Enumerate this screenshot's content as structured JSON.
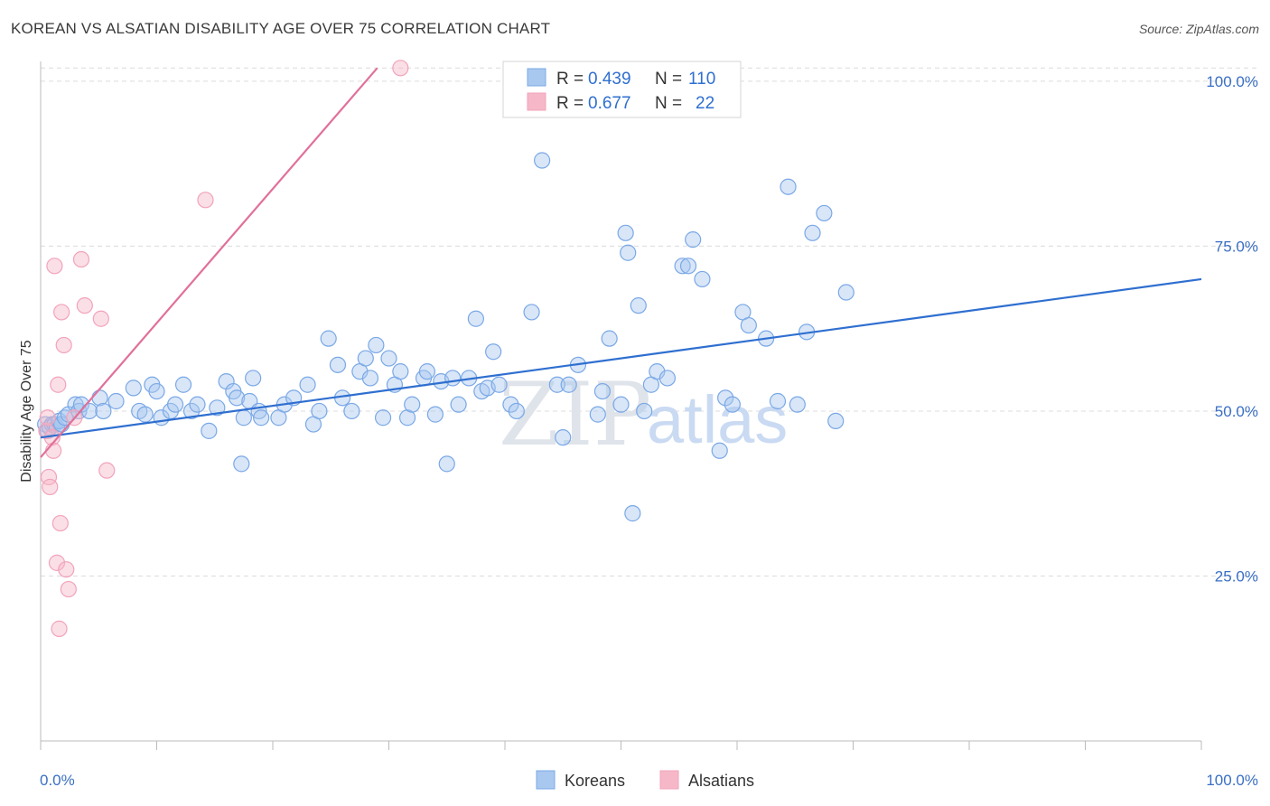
{
  "title": "KOREAN VS ALSATIAN DISABILITY AGE OVER 75 CORRELATION CHART",
  "source": "Source: ZipAtlas.com",
  "watermark": {
    "zip": "ZIP",
    "atlas": "atlas"
  },
  "legend": {
    "r_label": "R =",
    "n_label": "N =",
    "rows": [
      {
        "name": "Koreans",
        "r": "0.439",
        "n": "110",
        "color": "#a9c8f0"
      },
      {
        "name": "Alsatians",
        "r": "0.677",
        "n": "22",
        "color": "#f6b8c8"
      }
    ]
  },
  "chart_data": {
    "type": "scatter",
    "title": "KOREAN VS ALSATIAN DISABILITY AGE OVER 75 CORRELATION CHART",
    "ylabel": "Disability Age Over 75",
    "xlabel": "",
    "xlim": [
      0,
      100
    ],
    "ylim": [
      0,
      103
    ],
    "x_tick_labels": [
      "0.0%",
      "100.0%"
    ],
    "y_tick_labels": [
      "25.0%",
      "50.0%",
      "75.0%",
      "100.0%"
    ],
    "y_ticks": [
      25,
      50,
      75,
      100
    ],
    "grid": true,
    "legend_position": "top-center",
    "series": [
      {
        "name": "Koreans",
        "color": "#7aa8e6",
        "trend": {
          "x": [
            0,
            100
          ],
          "y": [
            46.0,
            70.0
          ],
          "color": "#2f6fd0"
        },
        "points": [
          [
            0.4,
            48
          ],
          [
            0.6,
            47
          ],
          [
            0.8,
            47.5
          ],
          [
            1.0,
            48
          ],
          [
            1.2,
            48
          ],
          [
            1.4,
            47.5
          ],
          [
            1.6,
            48.5
          ],
          [
            1.8,
            48
          ],
          [
            2.1,
            49
          ],
          [
            2.4,
            49.5
          ],
          [
            3.0,
            51
          ],
          [
            3.3,
            50
          ],
          [
            3.5,
            51
          ],
          [
            4.2,
            50
          ],
          [
            5.1,
            52
          ],
          [
            5.4,
            50
          ],
          [
            6.5,
            51.5
          ],
          [
            8.0,
            53.5
          ],
          [
            8.5,
            50
          ],
          [
            9.0,
            49.5
          ],
          [
            9.6,
            54
          ],
          [
            10.0,
            53
          ],
          [
            10.4,
            49
          ],
          [
            11.2,
            50
          ],
          [
            11.6,
            51
          ],
          [
            12.3,
            54
          ],
          [
            13.0,
            50
          ],
          [
            13.5,
            51
          ],
          [
            14.5,
            47
          ],
          [
            15.2,
            50.5
          ],
          [
            16.0,
            54.5
          ],
          [
            16.6,
            53
          ],
          [
            16.9,
            52
          ],
          [
            17.5,
            49
          ],
          [
            18.0,
            51.5
          ],
          [
            18.3,
            55
          ],
          [
            17.3,
            42
          ],
          [
            18.8,
            50
          ],
          [
            19.0,
            49
          ],
          [
            20.5,
            49
          ],
          [
            21.0,
            51
          ],
          [
            21.8,
            52
          ],
          [
            23.0,
            54
          ],
          [
            23.5,
            48
          ],
          [
            24.0,
            50
          ],
          [
            24.8,
            61
          ],
          [
            25.6,
            57
          ],
          [
            26.0,
            52
          ],
          [
            26.8,
            50
          ],
          [
            27.5,
            56
          ],
          [
            28.0,
            58
          ],
          [
            28.4,
            55
          ],
          [
            28.9,
            60
          ],
          [
            29.5,
            49
          ],
          [
            30.0,
            58
          ],
          [
            30.5,
            54
          ],
          [
            31.0,
            56
          ],
          [
            31.6,
            49
          ],
          [
            32.0,
            51
          ],
          [
            33.0,
            55
          ],
          [
            33.3,
            56
          ],
          [
            34.0,
            49.5
          ],
          [
            34.5,
            54.5
          ],
          [
            35.0,
            42
          ],
          [
            35.5,
            55
          ],
          [
            36.0,
            51
          ],
          [
            36.9,
            55
          ],
          [
            37.5,
            64
          ],
          [
            38.0,
            53
          ],
          [
            38.5,
            53.5
          ],
          [
            39.0,
            59
          ],
          [
            39.5,
            54
          ],
          [
            40.5,
            51
          ],
          [
            41.0,
            50
          ],
          [
            42.3,
            65
          ],
          [
            43.2,
            88
          ],
          [
            44.5,
            54
          ],
          [
            45.0,
            46
          ],
          [
            45.5,
            54
          ],
          [
            46.3,
            57
          ],
          [
            48.0,
            49.5
          ],
          [
            48.4,
            53
          ],
          [
            49.0,
            61
          ],
          [
            50.0,
            51
          ],
          [
            50.4,
            77
          ],
          [
            50.6,
            74
          ],
          [
            51.0,
            34.5
          ],
          [
            51.5,
            66
          ],
          [
            52.0,
            50
          ],
          [
            52.6,
            54
          ],
          [
            53.1,
            56
          ],
          [
            54.0,
            55
          ],
          [
            55.3,
            72
          ],
          [
            55.8,
            72
          ],
          [
            56.2,
            76
          ],
          [
            57.0,
            70
          ],
          [
            58.5,
            44
          ],
          [
            59.0,
            52
          ],
          [
            59.6,
            51
          ],
          [
            60.5,
            65
          ],
          [
            61.0,
            63
          ],
          [
            62.5,
            61
          ],
          [
            63.5,
            51.5
          ],
          [
            64.4,
            84
          ],
          [
            65.2,
            51
          ],
          [
            66.0,
            62
          ],
          [
            66.5,
            77
          ],
          [
            67.5,
            80
          ],
          [
            68.5,
            48.5
          ],
          [
            69.4,
            68
          ]
        ]
      },
      {
        "name": "Alsatians",
        "color": "#f2a3bb",
        "trend": {
          "x": [
            0,
            29
          ],
          "y": [
            43.0,
            102.0
          ],
          "color": "#e0709a"
        },
        "points": [
          [
            0.5,
            47
          ],
          [
            0.6,
            49
          ],
          [
            0.7,
            40
          ],
          [
            0.8,
            38.5
          ],
          [
            1.0,
            46
          ],
          [
            1.1,
            44
          ],
          [
            1.2,
            72
          ],
          [
            1.4,
            27
          ],
          [
            1.5,
            54
          ],
          [
            1.6,
            17
          ],
          [
            1.7,
            33
          ],
          [
            1.8,
            65
          ],
          [
            2.0,
            60
          ],
          [
            2.2,
            26
          ],
          [
            2.4,
            23
          ],
          [
            2.9,
            49
          ],
          [
            3.5,
            73
          ],
          [
            3.8,
            66
          ],
          [
            5.2,
            64
          ],
          [
            5.7,
            41
          ],
          [
            14.2,
            82
          ],
          [
            31.0,
            102
          ]
        ]
      }
    ]
  }
}
